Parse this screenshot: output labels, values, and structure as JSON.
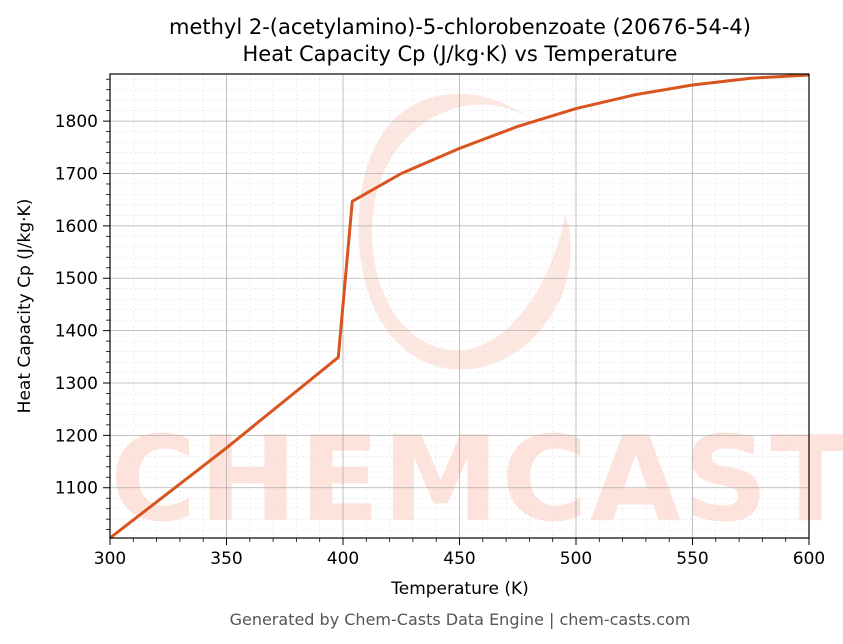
{
  "chart_data": {
    "type": "line",
    "title": "methyl 2-(acetylamino)-5-chlorobenzoate (20676-54-4)",
    "subtitle": "Heat Capacity Cp (J/kg·K) vs Temperature",
    "xlabel": "Temperature (K)",
    "ylabel": "Heat Capacity Cp (J/kg·K)",
    "xlim": [
      300,
      600
    ],
    "ylim": [
      1004,
      1890
    ],
    "xticks": [
      300,
      350,
      400,
      450,
      500,
      550,
      600
    ],
    "yticks": [
      1100,
      1200,
      1300,
      1400,
      1500,
      1600,
      1700,
      1800
    ],
    "grid": true,
    "legend": "none",
    "series": [
      {
        "color": "#d9541e",
        "x": [
          300,
          350,
          398,
          404,
          425,
          450,
          475,
          500,
          525,
          550,
          575,
          600
        ],
        "y": [
          1004,
          1176,
          1349,
          1647,
          1700,
          1748,
          1790,
          1824,
          1850,
          1869,
          1882,
          1888
        ]
      }
    ]
  },
  "watermark": {
    "text": "CHEMCASTS",
    "color": "#fde3dc"
  },
  "footer": "Generated by Chem-Casts Data Engine | chem-casts.com"
}
